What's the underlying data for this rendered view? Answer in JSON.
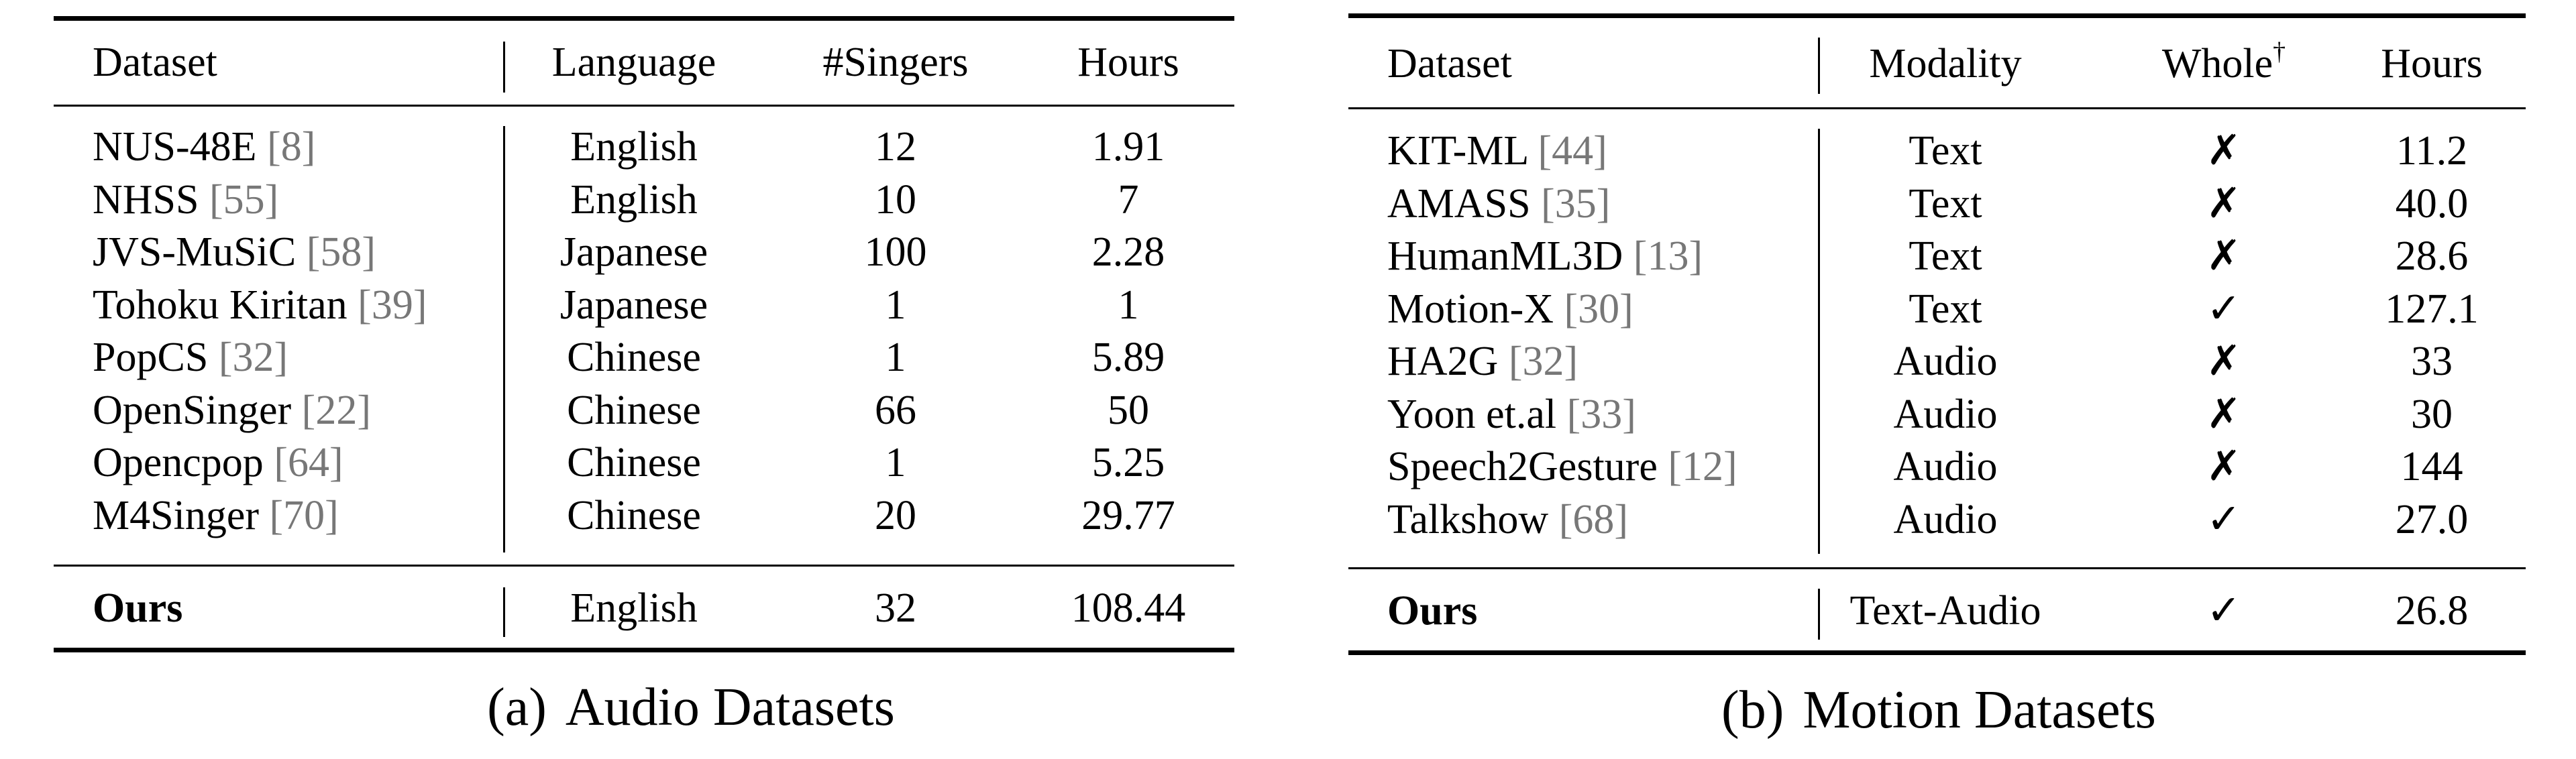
{
  "audio_table": {
    "headers": {
      "dataset": "Dataset",
      "language": "Language",
      "singers": "#Singers",
      "hours": "Hours"
    },
    "rows": [
      {
        "name": "NUS-48E",
        "cite": "[8]",
        "language": "English",
        "singers": "12",
        "hours": "1.91"
      },
      {
        "name": "NHSS",
        "cite": "[55]",
        "language": "English",
        "singers": "10",
        "hours": "7"
      },
      {
        "name": "JVS-MuSiC",
        "cite": "[58]",
        "language": "Japanese",
        "singers": "100",
        "hours": "2.28"
      },
      {
        "name": "Tohoku Kiritan",
        "cite": "[39]",
        "language": "Japanese",
        "singers": "1",
        "hours": "1"
      },
      {
        "name": "PopCS",
        "cite": "[32]",
        "language": "Chinese",
        "singers": "1",
        "hours": "5.89"
      },
      {
        "name": "OpenSinger",
        "cite": "[22]",
        "language": "Chinese",
        "singers": "66",
        "hours": "50"
      },
      {
        "name": "Opencpop",
        "cite": "[64]",
        "language": "Chinese",
        "singers": "1",
        "hours": "5.25"
      },
      {
        "name": "M4Singer",
        "cite": "[70]",
        "language": "Chinese",
        "singers": "20",
        "hours": "29.77"
      }
    ],
    "ours": {
      "name": "Ours",
      "language": "English",
      "singers": "32",
      "hours": "108.44"
    },
    "caption_tag": "(a)",
    "caption_text": "Audio Datasets"
  },
  "motion_table": {
    "headers": {
      "dataset": "Dataset",
      "modality": "Modality",
      "whole": "Whole",
      "whole_mark": "†",
      "hours": "Hours"
    },
    "rows": [
      {
        "name": "KIT-ML",
        "cite": "[44]",
        "modality": "Text",
        "whole": "✗",
        "hours": "11.2"
      },
      {
        "name": "AMASS",
        "cite": "[35]",
        "modality": "Text",
        "whole": "✗",
        "hours": "40.0"
      },
      {
        "name": "HumanML3D",
        "cite": "[13]",
        "modality": "Text",
        "whole": "✗",
        "hours": "28.6"
      },
      {
        "name": "Motion-X",
        "cite": "[30]",
        "modality": "Text",
        "whole": "✓",
        "hours": "127.1"
      },
      {
        "name": "HA2G",
        "cite": "[32]",
        "modality": "Audio",
        "whole": "✗",
        "hours": "33"
      },
      {
        "name": "Yoon et.al",
        "cite": "[33]",
        "modality": "Audio",
        "whole": "✗",
        "hours": "30"
      },
      {
        "name": "Speech2Gesture",
        "cite": "[12]",
        "modality": "Audio",
        "whole": "✗",
        "hours": "144"
      },
      {
        "name": "Talkshow",
        "cite": "[68]",
        "modality": "Audio",
        "whole": "✓",
        "hours": "27.0"
      }
    ],
    "ours": {
      "name": "Ours",
      "modality": "Text-Audio",
      "whole": "✓",
      "hours": "26.8"
    },
    "caption_tag": "(b)",
    "caption_text": "Motion Datasets"
  }
}
